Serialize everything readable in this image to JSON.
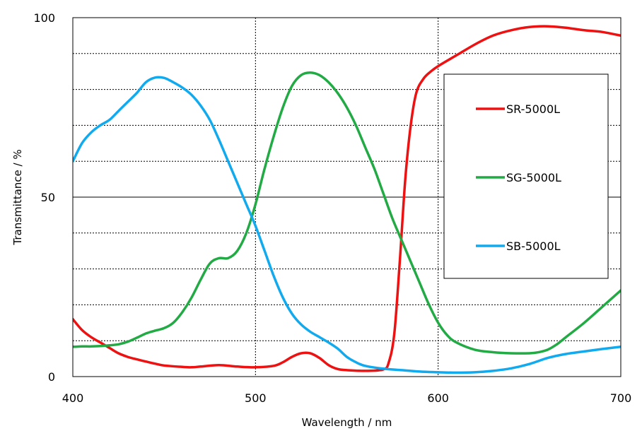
{
  "chart_data": {
    "type": "line",
    "title": "",
    "xlabel": "Wavelength / nm",
    "ylabel": "Transmittance / %",
    "xlim": [
      400,
      700
    ],
    "ylim": [
      0,
      100
    ],
    "x_ticks": [
      "400",
      "500",
      "600",
      "700"
    ],
    "y_ticks": [
      "0",
      "50",
      "100"
    ],
    "grid": true,
    "legend_position": "right",
    "series": [
      {
        "name": "SR-5000L",
        "color": "#ee1111",
        "points": [
          [
            400,
            16
          ],
          [
            405,
            13
          ],
          [
            410,
            11
          ],
          [
            415,
            9.5
          ],
          [
            420,
            8
          ],
          [
            425,
            6.5
          ],
          [
            430,
            5.5
          ],
          [
            435,
            4.8
          ],
          [
            440,
            4.2
          ],
          [
            445,
            3.6
          ],
          [
            450,
            3.1
          ],
          [
            460,
            2.7
          ],
          [
            465,
            2.6
          ],
          [
            470,
            2.8
          ],
          [
            480,
            3.2
          ],
          [
            490,
            2.8
          ],
          [
            500,
            2.6
          ],
          [
            510,
            3.0
          ],
          [
            515,
            4.0
          ],
          [
            520,
            5.5
          ],
          [
            525,
            6.5
          ],
          [
            530,
            6.5
          ],
          [
            535,
            5.2
          ],
          [
            540,
            3.2
          ],
          [
            545,
            2.1
          ],
          [
            550,
            1.8
          ],
          [
            560,
            1.6
          ],
          [
            570,
            2.0
          ],
          [
            573,
            4
          ],
          [
            576,
            12
          ],
          [
            579,
            32
          ],
          [
            582,
            55
          ],
          [
            585,
            70
          ],
          [
            588,
            79
          ],
          [
            592,
            83
          ],
          [
            596,
            85
          ],
          [
            600,
            86.5
          ],
          [
            610,
            89.5
          ],
          [
            620,
            92.5
          ],
          [
            630,
            95
          ],
          [
            640,
            96.5
          ],
          [
            650,
            97.4
          ],
          [
            660,
            97.6
          ],
          [
            670,
            97.2
          ],
          [
            680,
            96.5
          ],
          [
            690,
            96
          ],
          [
            700,
            95
          ]
        ]
      },
      {
        "name": "SG-5000L",
        "color": "#22aa44",
        "points": [
          [
            400,
            8.3
          ],
          [
            405,
            8.4
          ],
          [
            410,
            8.4
          ],
          [
            415,
            8.5
          ],
          [
            420,
            8.7
          ],
          [
            425,
            9.0
          ],
          [
            430,
            9.7
          ],
          [
            435,
            10.8
          ],
          [
            440,
            12
          ],
          [
            445,
            12.8
          ],
          [
            450,
            13.5
          ],
          [
            455,
            15
          ],
          [
            460,
            18
          ],
          [
            465,
            22
          ],
          [
            470,
            27
          ],
          [
            475,
            31.5
          ],
          [
            480,
            33
          ],
          [
            485,
            33
          ],
          [
            490,
            35
          ],
          [
            495,
            40
          ],
          [
            500,
            48
          ],
          [
            505,
            58
          ],
          [
            510,
            67
          ],
          [
            515,
            75
          ],
          [
            520,
            81
          ],
          [
            525,
            84
          ],
          [
            530,
            84.7
          ],
          [
            535,
            84
          ],
          [
            540,
            82
          ],
          [
            545,
            79
          ],
          [
            550,
            75
          ],
          [
            555,
            70
          ],
          [
            560,
            64
          ],
          [
            565,
            58
          ],
          [
            570,
            51
          ],
          [
            575,
            44
          ],
          [
            580,
            38
          ],
          [
            585,
            32
          ],
          [
            590,
            26
          ],
          [
            595,
            20
          ],
          [
            600,
            15
          ],
          [
            605,
            11.5
          ],
          [
            610,
            9.5
          ],
          [
            620,
            7.5
          ],
          [
            630,
            6.8
          ],
          [
            640,
            6.5
          ],
          [
            650,
            6.5
          ],
          [
            655,
            6.8
          ],
          [
            660,
            7.5
          ],
          [
            665,
            9
          ],
          [
            670,
            11
          ],
          [
            680,
            15
          ],
          [
            690,
            19.5
          ],
          [
            700,
            24
          ]
        ]
      },
      {
        "name": "SB-5000L",
        "color": "#11aaee",
        "points": [
          [
            400,
            60
          ],
          [
            405,
            65
          ],
          [
            410,
            68
          ],
          [
            415,
            70
          ],
          [
            420,
            71.5
          ],
          [
            425,
            74
          ],
          [
            430,
            76.5
          ],
          [
            435,
            79
          ],
          [
            440,
            82
          ],
          [
            445,
            83.3
          ],
          [
            450,
            83.2
          ],
          [
            455,
            82
          ],
          [
            460,
            80.5
          ],
          [
            465,
            78.5
          ],
          [
            470,
            75.5
          ],
          [
            475,
            71.5
          ],
          [
            480,
            66
          ],
          [
            485,
            60
          ],
          [
            490,
            54
          ],
          [
            495,
            48
          ],
          [
            500,
            42
          ],
          [
            505,
            35
          ],
          [
            510,
            28
          ],
          [
            515,
            22
          ],
          [
            520,
            17.5
          ],
          [
            525,
            14.5
          ],
          [
            530,
            12.5
          ],
          [
            535,
            11
          ],
          [
            540,
            9.5
          ],
          [
            545,
            7.8
          ],
          [
            550,
            5.5
          ],
          [
            555,
            4
          ],
          [
            560,
            3
          ],
          [
            570,
            2.2
          ],
          [
            580,
            1.8
          ],
          [
            590,
            1.4
          ],
          [
            600,
            1.2
          ],
          [
            610,
            1.1
          ],
          [
            620,
            1.2
          ],
          [
            630,
            1.6
          ],
          [
            640,
            2.3
          ],
          [
            650,
            3.5
          ],
          [
            660,
            5.2
          ],
          [
            670,
            6.3
          ],
          [
            680,
            7
          ],
          [
            690,
            7.7
          ],
          [
            700,
            8.3
          ]
        ]
      }
    ]
  }
}
